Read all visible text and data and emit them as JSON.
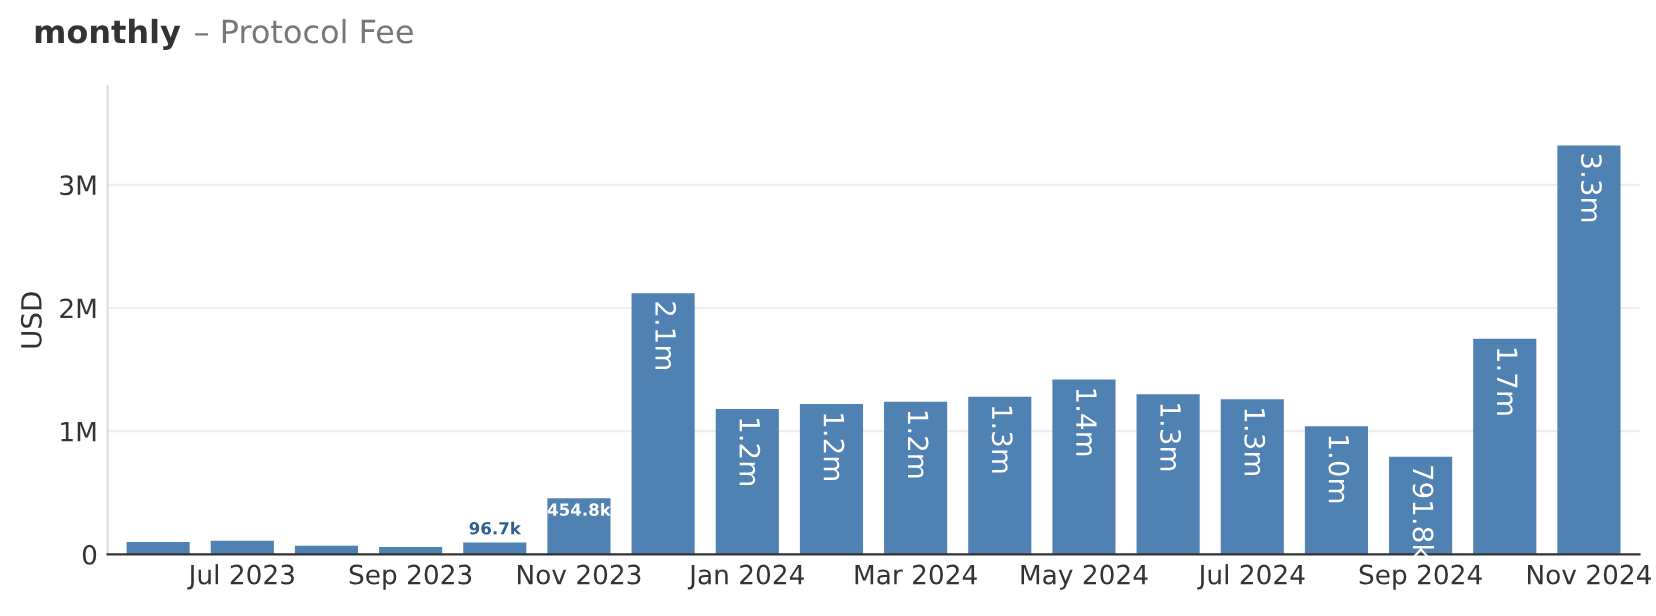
{
  "chart_data": {
    "type": "bar",
    "title": "monthly",
    "subtitle": "– Protocol Fee",
    "ylabel": "USD",
    "categories": [
      null,
      "Jul 2023",
      null,
      "Sep 2023",
      null,
      "Nov 2023",
      null,
      "Jan 2024",
      null,
      "Mar 2024",
      null,
      "May 2024",
      null,
      "Jul 2024",
      null,
      "Sep 2024",
      null,
      "Nov 2024"
    ],
    "values": [
      100000,
      110000,
      70000,
      60000,
      96700,
      454800,
      2120000,
      1180000,
      1220000,
      1240000,
      1280000,
      1420000,
      1300000,
      1260000,
      1040000,
      791800,
      1750000,
      3320000
    ],
    "value_labels": [
      null,
      null,
      null,
      null,
      "96.7k",
      "454.8k",
      "2.1m",
      "1.2m",
      "1.2m",
      "1.2m",
      "1.3m",
      "1.4m",
      "1.3m",
      "1.3m",
      "1.0m",
      "791.8k",
      "1.7m",
      "3.3m"
    ],
    "color": "#4f81b3",
    "ylim": [
      0,
      3800000
    ],
    "yticks": [
      {
        "value": 0,
        "label": "0"
      },
      {
        "value": 1000000,
        "label": "1M"
      },
      {
        "value": 2000000,
        "label": "2M"
      },
      {
        "value": 3000000,
        "label": "3M"
      }
    ],
    "grid": "y",
    "legend": false
  }
}
